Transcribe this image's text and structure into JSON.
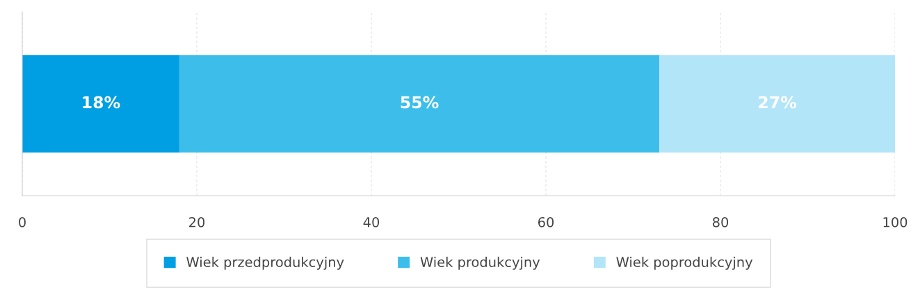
{
  "chart_data": {
    "type": "bar",
    "orientation": "horizontal",
    "stacked": true,
    "categories": [
      null
    ],
    "series": [
      {
        "name": "Wiek przedprodukcyjny",
        "color": "#009fe3",
        "values": [
          18
        ],
        "value_labels": [
          "18%"
        ]
      },
      {
        "name": "Wiek produkcyjny",
        "color": "#3dbeea",
        "values": [
          55
        ],
        "value_labels": [
          "55%"
        ]
      },
      {
        "name": "Wiek poprodukcyjny",
        "color": "#b3e5f9",
        "values": [
          27
        ],
        "value_labels": [
          "27%"
        ]
      }
    ],
    "xlim": [
      0,
      100
    ],
    "xticks": [
      0,
      20,
      40,
      60,
      80,
      100
    ],
    "grid": "x",
    "legend": "bottom",
    "tick_labels": "x"
  }
}
